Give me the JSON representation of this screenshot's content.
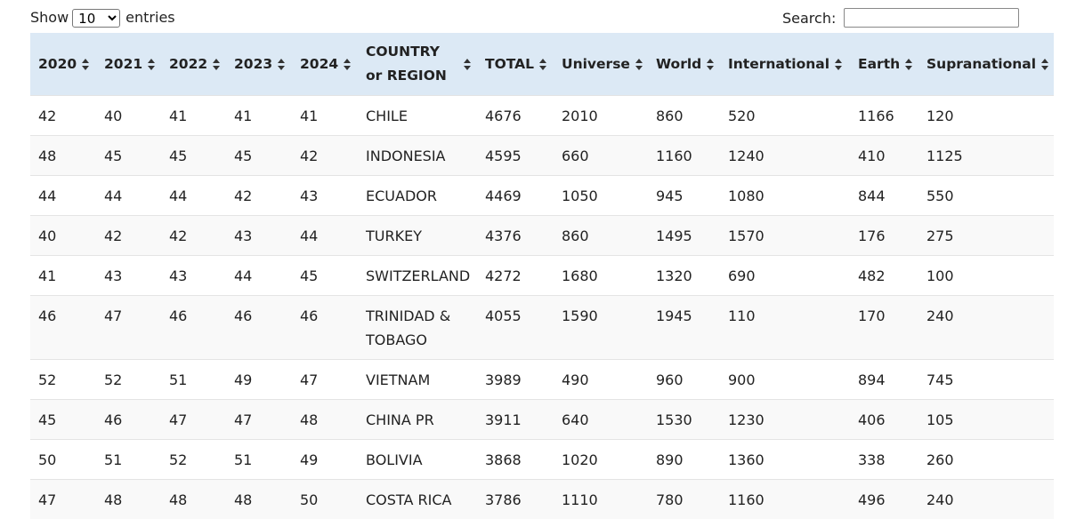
{
  "controls": {
    "show_label": "Show",
    "page_length": "10",
    "entries_label": "entries",
    "search_label": "Search:"
  },
  "table": {
    "headers": [
      "2020",
      "2021",
      "2022",
      "2023",
      "2024",
      "COUNTRY or REGION",
      "TOTAL",
      "Universe",
      "World",
      "International",
      "Earth",
      "Supranational"
    ],
    "rows": [
      [
        42,
        40,
        41,
        41,
        41,
        "CHILE",
        4676,
        2010,
        860,
        520,
        1166,
        120
      ],
      [
        48,
        45,
        45,
        45,
        42,
        "INDONESIA",
        4595,
        660,
        1160,
        1240,
        410,
        1125
      ],
      [
        44,
        44,
        44,
        42,
        43,
        "ECUADOR",
        4469,
        1050,
        945,
        1080,
        844,
        550
      ],
      [
        40,
        42,
        42,
        43,
        44,
        "TURKEY",
        4376,
        860,
        1495,
        1570,
        176,
        275
      ],
      [
        41,
        43,
        43,
        44,
        45,
        "SWITZERLAND",
        4272,
        1680,
        1320,
        690,
        482,
        100
      ],
      [
        46,
        47,
        46,
        46,
        46,
        "TRINIDAD & TOBAGO",
        4055,
        1590,
        1945,
        110,
        170,
        240
      ],
      [
        52,
        52,
        51,
        49,
        47,
        "VIETNAM",
        3989,
        490,
        960,
        900,
        894,
        745
      ],
      [
        45,
        46,
        47,
        47,
        48,
        "CHINA PR",
        3911,
        640,
        1530,
        1230,
        406,
        105
      ],
      [
        50,
        51,
        52,
        51,
        49,
        "BOLIVIA",
        3868,
        1020,
        890,
        1360,
        338,
        260
      ],
      [
        47,
        48,
        48,
        48,
        50,
        "COSTA RICA",
        3786,
        1110,
        780,
        1160,
        496,
        240
      ]
    ]
  }
}
